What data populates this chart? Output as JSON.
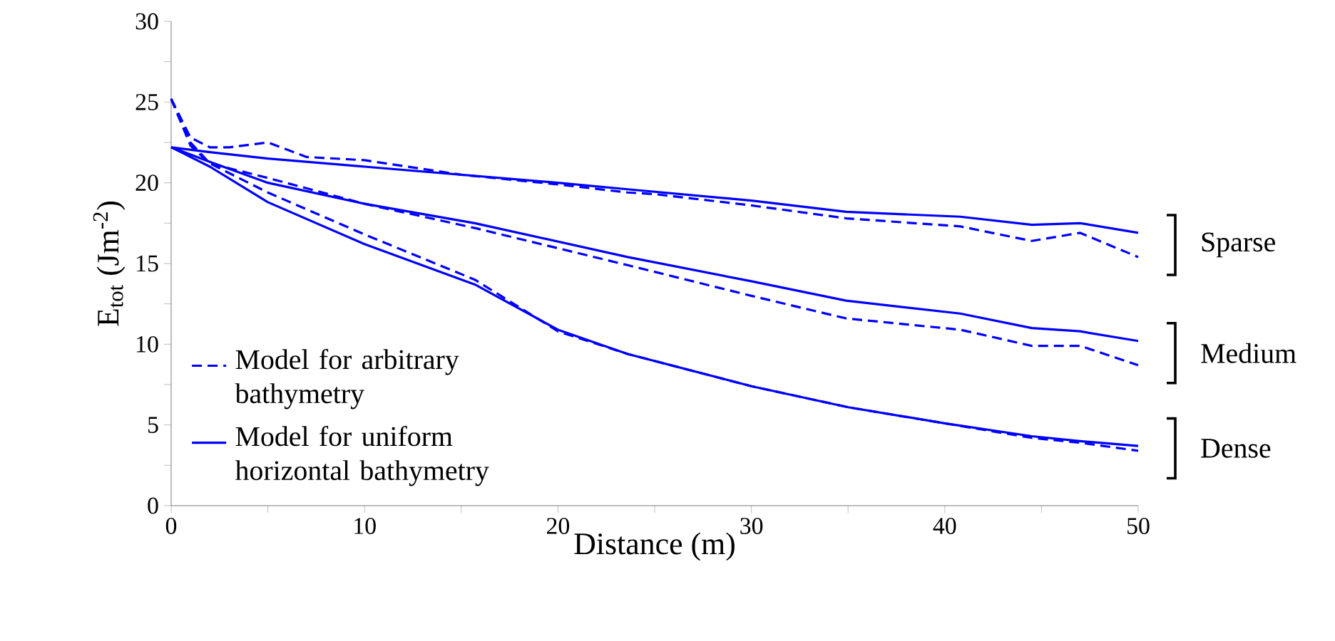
{
  "chart_data": {
    "type": "line",
    "xlabel": "Distance (m)",
    "ylabel": "E$_{tot}$ (Jm$^{-2}$)",
    "xlim": [
      0,
      50
    ],
    "ylim": [
      0,
      30
    ],
    "xticks": [
      0,
      {
        "value": 5,
        "label": null
      },
      10,
      {
        "value": 15,
        "label": null
      },
      20,
      {
        "value": 25,
        "label": null
      },
      30,
      {
        "value": 35,
        "label": null
      },
      40,
      {
        "value": 45,
        "label": null
      },
      50
    ],
    "yticks": [
      0,
      {
        "value": 2.5,
        "label": null
      },
      5,
      {
        "value": 7.5,
        "label": null
      },
      10,
      {
        "value": 12.5,
        "label": null
      },
      15,
      {
        "value": 17.5,
        "label": null
      },
      20,
      {
        "value": 22.5,
        "label": null
      },
      25,
      {
        "value": 27.5,
        "label": null
      },
      30
    ],
    "grid": false,
    "legend": "bottom left",
    "annotations": [
      "Sparse",
      "Medium",
      "Dense"
    ],
    "series": [
      {
        "name": "Model for arbitrary bathymetry",
        "color": "#0000ff",
        "line_style": "dashed",
        "x": [
          0,
          1,
          2,
          3,
          5,
          7,
          10,
          15,
          20,
          23.6,
          25,
          30,
          34.9,
          40.8,
          44.5,
          47,
          50
        ],
        "values": [
          25.2,
          22.8,
          22.2,
          22.2,
          22.5,
          21.6,
          21.4,
          20.5,
          19.9,
          19.4,
          19.3,
          18.6,
          17.8,
          17.3,
          16.4,
          16.9,
          15.4
        ]
      },
      {
        "name": "Model for uniform horizontal bathymetry",
        "color": "#0000ff",
        "line_style": "solid",
        "x": [
          0,
          2,
          5,
          10,
          20,
          23.6,
          30,
          34.9,
          40.8,
          44.5,
          47,
          50
        ],
        "values": [
          22.2,
          21.9,
          21.5,
          21.0,
          20.0,
          19.6,
          18.9,
          18.2,
          17.9,
          17.4,
          17.5,
          16.9
        ]
      },
      {
        "color": "#0000ff",
        "line_style": "dashed",
        "x": [
          0,
          1,
          2,
          5,
          10,
          15.7,
          23.6,
          30,
          34.9,
          40.8,
          44.5,
          47,
          50
        ],
        "values": [
          25.2,
          22.5,
          21.2,
          20.3,
          18.7,
          17.2,
          14.9,
          13.0,
          11.6,
          10.9,
          9.9,
          9.9,
          8.7
        ]
      },
      {
        "color": "#0000ff",
        "line_style": "solid",
        "x": [
          0,
          2,
          5,
          10,
          15.7,
          23.6,
          30,
          34.9,
          40.8,
          44.5,
          47,
          50
        ],
        "values": [
          22.2,
          21.3,
          20.0,
          18.7,
          17.5,
          15.4,
          13.9,
          12.7,
          11.9,
          11.0,
          10.8,
          10.2
        ]
      },
      {
        "color": "#0000ff",
        "line_style": "dashed",
        "x": [
          0,
          1,
          2,
          5,
          10,
          15.7,
          20,
          23.6,
          30,
          35,
          40,
          44.5,
          47,
          50
        ],
        "values": [
          25.2,
          22.3,
          21.2,
          19.4,
          16.8,
          14.0,
          10.8,
          9.4,
          7.4,
          6.1,
          5.1,
          4.2,
          3.9,
          3.4
        ]
      },
      {
        "color": "#0000ff",
        "line_style": "solid",
        "x": [
          0,
          2,
          5,
          10,
          15.7,
          20,
          23.6,
          30,
          35,
          40,
          44.5,
          47,
          50
        ],
        "values": [
          22.2,
          21.0,
          18.8,
          16.2,
          13.7,
          10.9,
          9.4,
          7.4,
          6.1,
          5.1,
          4.3,
          4.0,
          3.7
        ]
      }
    ]
  }
}
